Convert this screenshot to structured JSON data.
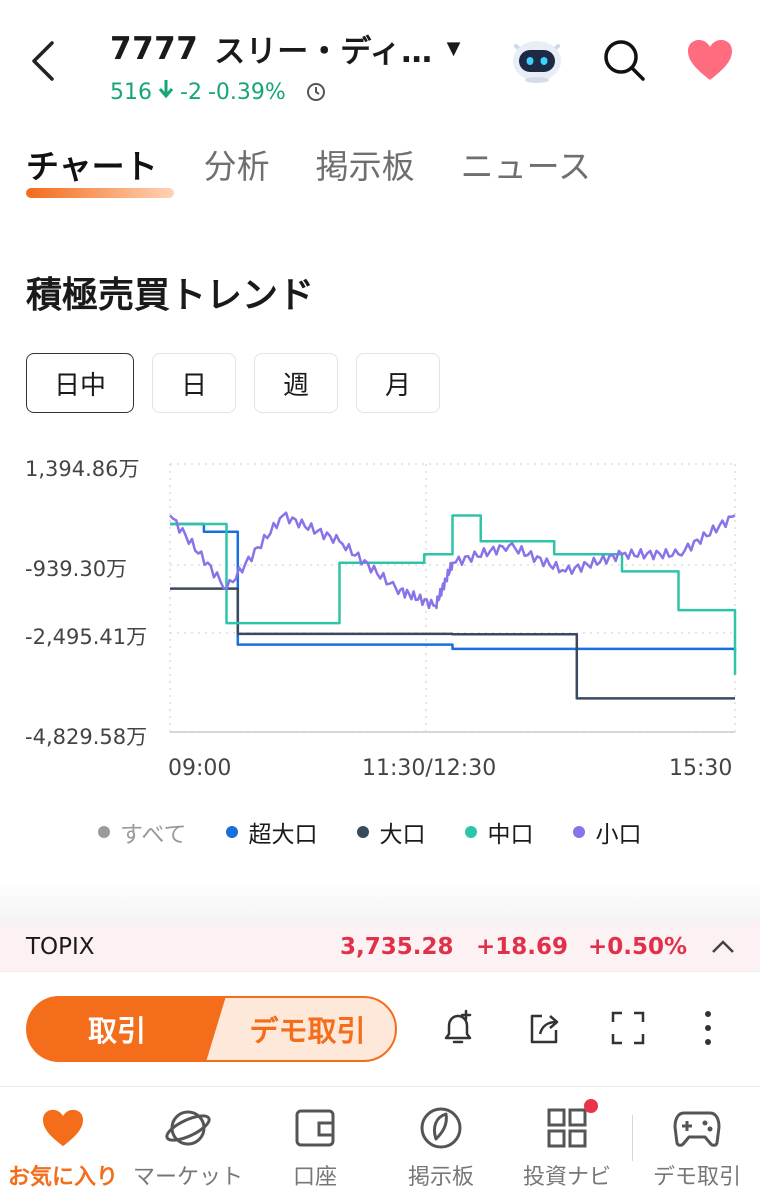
{
  "header": {
    "code": "7777",
    "name": "スリー・ディ…",
    "price": "516",
    "change": "-2",
    "change_pct": "-0.39%"
  },
  "tabs": [
    {
      "label": "チャート",
      "active": true
    },
    {
      "label": "分析"
    },
    {
      "label": "掲示板"
    },
    {
      "label": "ニュース"
    }
  ],
  "section_title": "積極売買トレンド",
  "periods": [
    "日中",
    "日",
    "週",
    "月"
  ],
  "colors": {
    "accent": "#f36d1a",
    "up_red": "#e0304a",
    "down_green": "#17a673",
    "super_large": "#1a6fe0",
    "large": "#3a4a5e",
    "medium": "#2ec4a8",
    "small": "#8a72e8"
  },
  "chart_data": {
    "type": "line",
    "y_ticks": [
      "1,394.86万",
      "-939.30万",
      "-2,495.41万",
      "-4,829.58万"
    ],
    "x_ticks": [
      "09:00",
      "11:30/12:30",
      "15:30"
    ],
    "x_range": [
      "09:00",
      "15:30"
    ],
    "y_range": [
      -4829.58,
      1394.86
    ],
    "series": [
      {
        "name": "超大口",
        "color": "#1a6fe0",
        "values": [
          [
            0,
            0
          ],
          [
            0.06,
            -180
          ],
          [
            0.12,
            -2800
          ],
          [
            0.5,
            -2900
          ],
          [
            1,
            -2950
          ]
        ]
      },
      {
        "name": "大口",
        "color": "#3a4a5e",
        "values": [
          [
            0,
            -1500
          ],
          [
            0.04,
            -1500
          ],
          [
            0.12,
            -2550
          ],
          [
            0.5,
            -2560
          ],
          [
            0.7,
            -2560
          ],
          [
            0.72,
            -4050
          ],
          [
            1,
            -4050
          ]
        ]
      },
      {
        "name": "中口",
        "color": "#2ec4a8",
        "values": [
          [
            0,
            0
          ],
          [
            0.1,
            -2300
          ],
          [
            0.3,
            -900
          ],
          [
            0.45,
            -700
          ],
          [
            0.5,
            200
          ],
          [
            0.55,
            -400
          ],
          [
            0.68,
            -700
          ],
          [
            0.8,
            -1100
          ],
          [
            0.9,
            -2000
          ],
          [
            1,
            -3500
          ]
        ]
      },
      {
        "name": "小口",
        "color": "#8a72e8",
        "values": [
          [
            0,
            200
          ],
          [
            0.1,
            -1500
          ],
          [
            0.2,
            200
          ],
          [
            0.3,
            -400
          ],
          [
            0.4,
            -1500
          ],
          [
            0.47,
            -1900
          ],
          [
            0.5,
            -900
          ],
          [
            0.6,
            -500
          ],
          [
            0.7,
            -1100
          ],
          [
            0.8,
            -700
          ],
          [
            0.9,
            -700
          ],
          [
            1,
            200
          ]
        ]
      }
    ],
    "legend": [
      {
        "label": "すべて",
        "color": "#9a9a9a",
        "active": false
      },
      {
        "label": "超大口",
        "color": "#1a6fe0",
        "active": true
      },
      {
        "label": "大口",
        "color": "#3a4a5e",
        "active": true
      },
      {
        "label": "中口",
        "color": "#2ec4a8",
        "active": true
      },
      {
        "label": "小口",
        "color": "#8a72e8",
        "active": true
      }
    ]
  },
  "topix": {
    "name": "TOPIX",
    "value": "3,735.28",
    "change": "+18.69",
    "change_pct": "+0.50%"
  },
  "actions": {
    "trade": "取引",
    "demo_trade": "デモ取引"
  },
  "bottom_nav": [
    {
      "label": "お気に入り",
      "icon": "heart-icon",
      "active": true
    },
    {
      "label": "マーケット",
      "icon": "planet-icon"
    },
    {
      "label": "口座",
      "icon": "wallet-icon"
    },
    {
      "label": "掲示板",
      "icon": "board-icon"
    },
    {
      "label": "投資ナビ",
      "icon": "grid-icon",
      "badge": true
    },
    {
      "label": "デモ取引",
      "icon": "gamepad-icon"
    }
  ]
}
